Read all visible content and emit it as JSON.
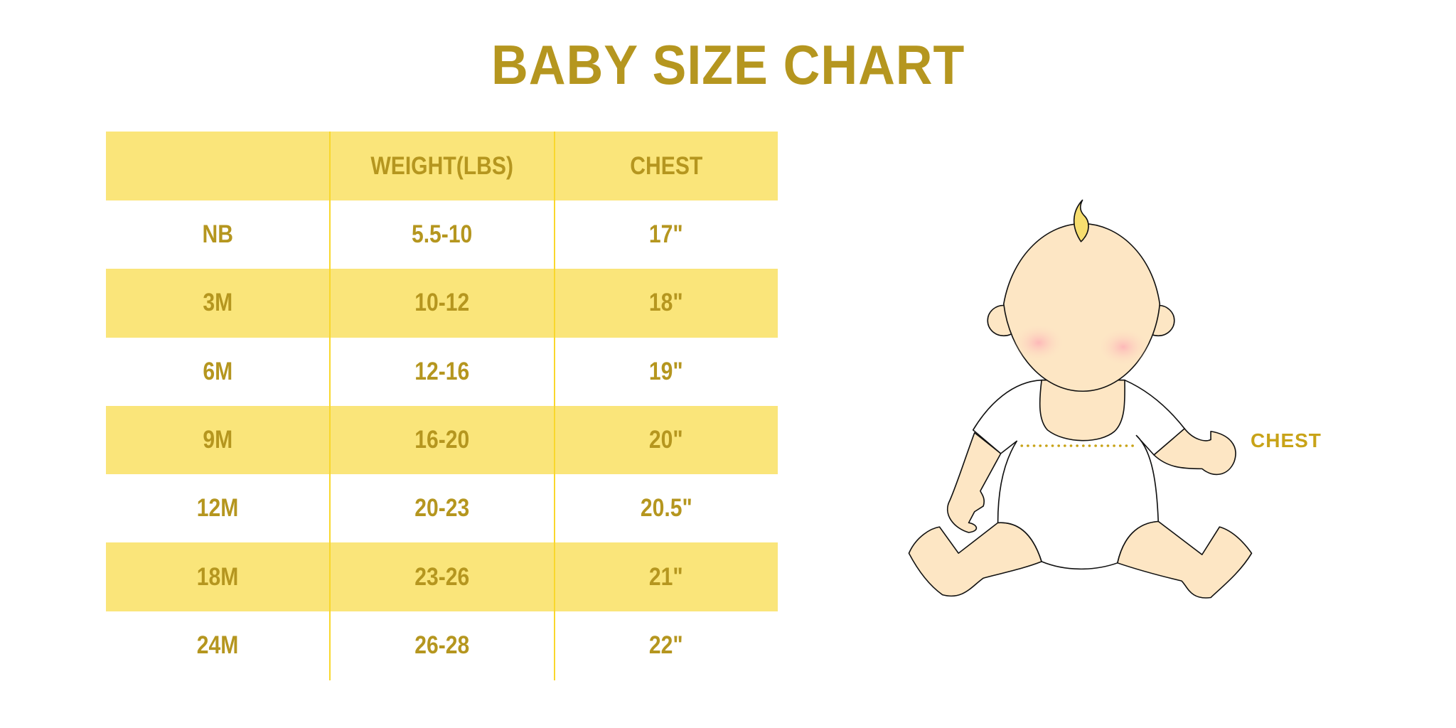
{
  "title": "BABY SIZE CHART",
  "table": {
    "headers": [
      "",
      "WEIGHT(LBS)",
      "CHEST"
    ],
    "rows": [
      [
        "NB",
        "5.5-10",
        "17\""
      ],
      [
        "3M",
        "10-12",
        "18\""
      ],
      [
        "6M",
        "12-16",
        "19\""
      ],
      [
        "9M",
        "16-20",
        "20\""
      ],
      [
        "12M",
        "20-23",
        "20.5\""
      ],
      [
        "18M",
        "23-26",
        "21\""
      ],
      [
        "24M",
        "26-28",
        "22\""
      ]
    ]
  },
  "illustration": {
    "chest_label": "CHEST"
  },
  "colors": {
    "text": "#b5961f",
    "band": "#fae57a",
    "divider": "#f9d72c",
    "chest_marker": "#c8a318"
  }
}
